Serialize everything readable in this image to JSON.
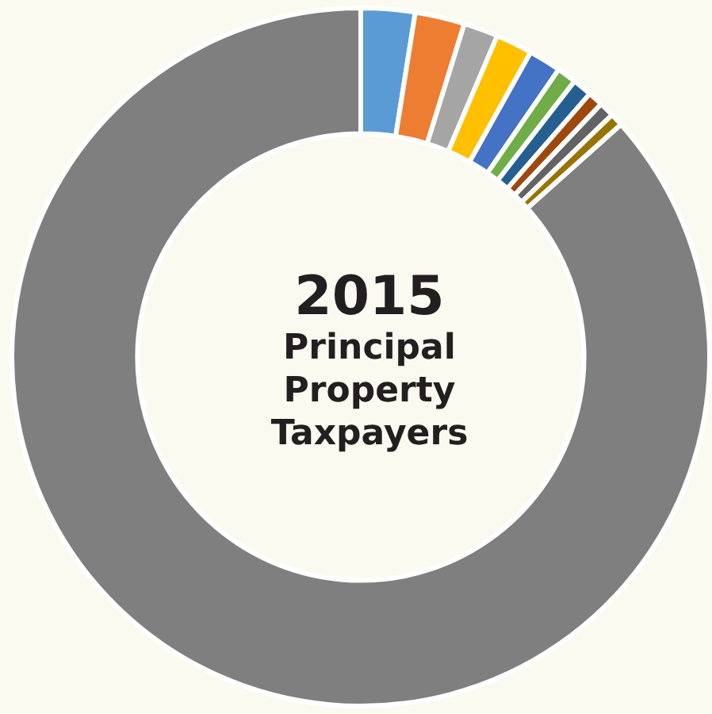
{
  "chart_data": {
    "type": "donut",
    "title": "2015",
    "subtitle": "Principal Property Taxpayers",
    "categories": [
      null,
      null,
      null,
      null,
      null,
      null,
      null,
      null,
      null,
      null,
      null
    ],
    "values": [
      2.5,
      2.3,
      1.6,
      1.7,
      1.5,
      0.9,
      0.9,
      0.7,
      0.7,
      0.6,
      86.6
    ],
    "colors": [
      "#5b9bd5",
      "#ed7d31",
      "#a5a5a5",
      "#ffc000",
      "#4472c4",
      "#70ad47",
      "#255e91",
      "#9e480e",
      "#636363",
      "#997300",
      "#7f7f7f"
    ],
    "legend": false
  }
}
